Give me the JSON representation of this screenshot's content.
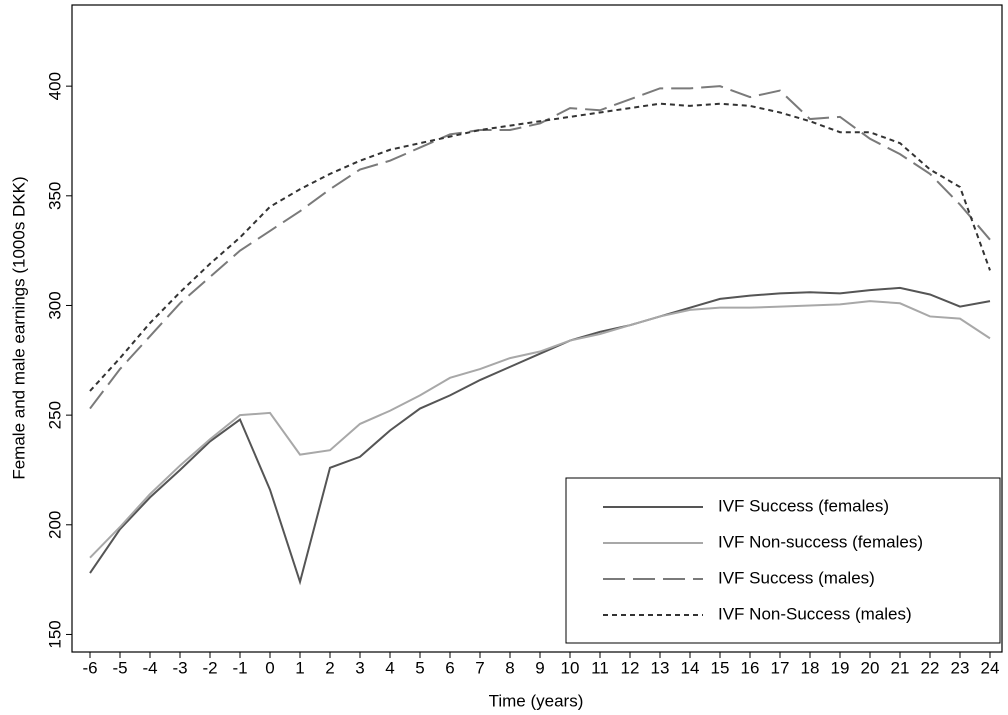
{
  "chart_data": {
    "type": "line",
    "x_label": "Time (years)",
    "y_label": "Female and male earnings (1000s DKK)",
    "x": [
      -6,
      -5,
      -4,
      -3,
      -2,
      -1,
      0,
      1,
      2,
      3,
      4,
      5,
      6,
      7,
      8,
      9,
      10,
      11,
      12,
      13,
      14,
      15,
      16,
      17,
      18,
      19,
      20,
      21,
      22,
      23,
      24
    ],
    "xlim": [
      -6.6,
      24.4
    ],
    "xticks": [
      -6,
      -5,
      -4,
      -3,
      -2,
      -1,
      0,
      1,
      2,
      3,
      4,
      5,
      6,
      7,
      8,
      9,
      10,
      11,
      12,
      13,
      14,
      15,
      16,
      17,
      18,
      19,
      20,
      21,
      22,
      23,
      24
    ],
    "ylim": [
      142,
      437
    ],
    "yticks": [
      150,
      200,
      250,
      300,
      350,
      400
    ],
    "legend": "bottom-right",
    "series": [
      {
        "name": "IVF Success (females)",
        "color": "#555555",
        "dash": "solid",
        "values": [
          178,
          198,
          212.5,
          225,
          238,
          248,
          216,
          174,
          226,
          231,
          243,
          253,
          259,
          266,
          272,
          278,
          284,
          288,
          291,
          295,
          299,
          303,
          304.5,
          305.5,
          306,
          305.5,
          307,
          308,
          305,
          299.5,
          302
        ]
      },
      {
        "name": "IVF Non-success (females)",
        "color": "#a8a8a8",
        "dash": "solid",
        "values": [
          185,
          199,
          214,
          227,
          239,
          250,
          251,
          232,
          234,
          246,
          252,
          259,
          267,
          271,
          276,
          279,
          284,
          287,
          291,
          295,
          298,
          299,
          299,
          299.5,
          300,
          300.5,
          302,
          301,
          295,
          294,
          285
        ]
      },
      {
        "name": "IVF Success (males)",
        "color": "#7a7a7a",
        "dash": "long",
        "values": [
          253,
          271,
          286,
          301,
          313,
          325,
          334,
          343,
          353,
          362,
          366,
          372,
          378,
          380,
          380,
          383,
          390,
          389,
          394,
          399,
          399,
          400,
          395,
          398,
          385,
          386,
          376,
          369,
          360,
          346,
          330
        ]
      },
      {
        "name": "IVF Non-Success (males)",
        "color": "#333333",
        "dash": "short",
        "values": [
          261,
          276,
          292,
          306,
          319,
          331,
          345,
          353,
          360,
          366,
          371,
          374,
          377,
          380,
          382,
          384,
          386,
          388,
          390,
          392,
          391,
          392,
          391,
          388,
          384,
          379,
          379,
          374,
          362,
          354,
          316
        ]
      }
    ]
  }
}
